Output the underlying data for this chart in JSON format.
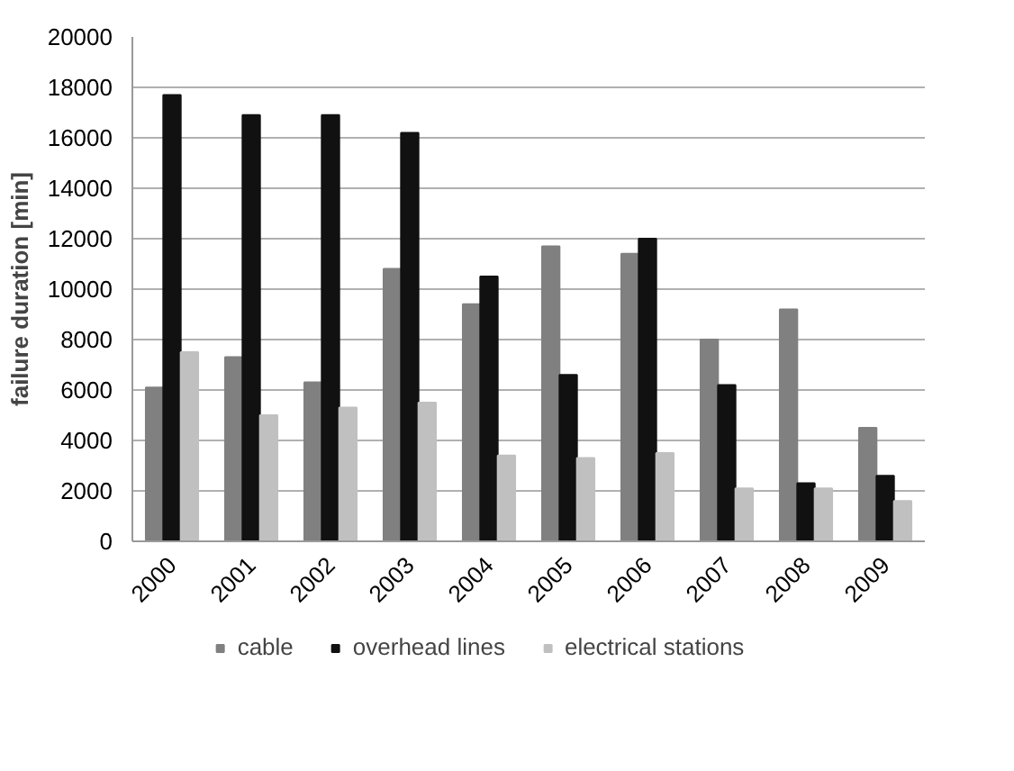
{
  "chart_data": {
    "type": "bar",
    "ylabel": "failure duration [min]",
    "categories": [
      "2000",
      "2001",
      "2002",
      "2003",
      "2004",
      "2005",
      "2006",
      "2007",
      "2008",
      "2009"
    ],
    "series": [
      {
        "name": "cable",
        "color": "#808080",
        "values": [
          6100,
          7300,
          6300,
          10800,
          9400,
          11700,
          11400,
          8000,
          9200,
          4500
        ]
      },
      {
        "name": "overhead lines",
        "color": "#111111",
        "values": [
          17700,
          16900,
          16900,
          16200,
          10500,
          6600,
          12000,
          6200,
          2300,
          2600
        ]
      },
      {
        "name": "electrical stations",
        "color": "#c0c0c0",
        "values": [
          7500,
          5000,
          5300,
          5500,
          3400,
          3300,
          3500,
          2100,
          2100,
          1600
        ]
      }
    ],
    "ylim": [
      0,
      20000
    ],
    "yticks": [
      0,
      2000,
      4000,
      6000,
      8000,
      10000,
      12000,
      14000,
      16000,
      18000,
      20000
    ],
    "grid": "y",
    "legend": "bottom"
  }
}
